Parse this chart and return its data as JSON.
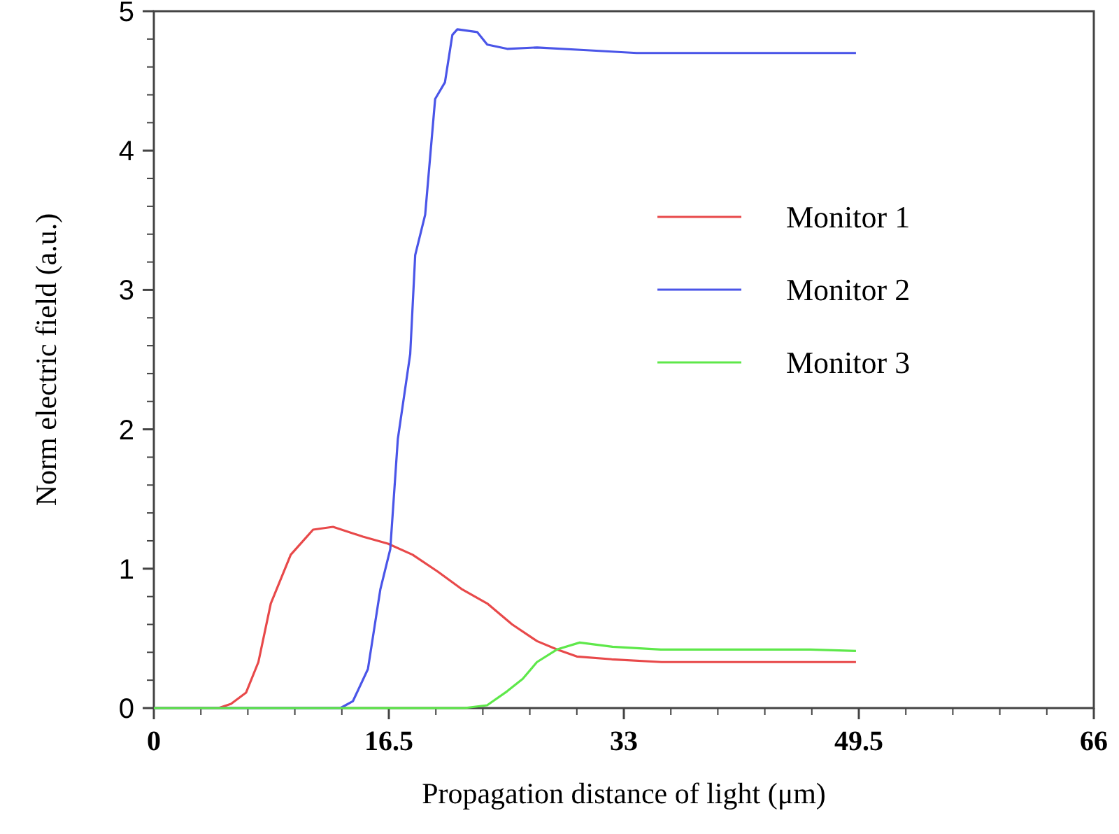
{
  "chart_data": {
    "type": "line",
    "xlabel": "Propagation distance of light (μm)",
    "ylabel": "Norm electric field (a.u.)",
    "xlim": [
      0,
      66
    ],
    "xticks": [
      0,
      16.5,
      33,
      49.5,
      66
    ],
    "ylim": [
      0,
      5
    ],
    "yticks": [
      0,
      1,
      2,
      3,
      4,
      5
    ],
    "grid": false,
    "legend": "right",
    "marker": "none",
    "line_style": "solid",
    "series": [
      {
        "name": "Monitor 1",
        "color": "#e8494a",
        "x": [
          0,
          4.54,
          5.42,
          6.47,
          7.34,
          8.21,
          9.61,
          11.18,
          12.58,
          14.68,
          16.43,
          18.17,
          19.92,
          21.67,
          23.41,
          25.16,
          26.91,
          28.31,
          29.7,
          32.15,
          35.65,
          49.3
        ],
        "values": [
          0,
          0,
          0.03,
          0.11,
          0.33,
          0.75,
          1.1,
          1.28,
          1.3,
          1.23,
          1.18,
          1.1,
          0.98,
          0.85,
          0.75,
          0.6,
          0.48,
          0.42,
          0.37,
          0.35,
          0.33,
          0.33
        ]
      },
      {
        "name": "Monitor 2",
        "color": "#4a55e8",
        "x": [
          0,
          13.1,
          13.98,
          15.03,
          15.9,
          16.6,
          17.13,
          18.0,
          18.35,
          19.05,
          19.75,
          20.44,
          20.96,
          21.31,
          22.71,
          23.41,
          24.81,
          26.91,
          30.4,
          33.9,
          49.3
        ],
        "values": [
          0,
          0,
          0.05,
          0.28,
          0.85,
          1.14,
          1.93,
          2.54,
          3.25,
          3.54,
          4.37,
          4.49,
          4.83,
          4.87,
          4.85,
          4.76,
          4.73,
          4.74,
          4.72,
          4.7,
          4.7
        ]
      },
      {
        "name": "Monitor 3",
        "color": "#5ee84a",
        "x": [
          0,
          21.8,
          23.4,
          24.8,
          25.9,
          26.9,
          28.3,
          29.9,
          32.2,
          35.6,
          46.1,
          49.3
        ],
        "values": [
          0,
          0,
          0.02,
          0.12,
          0.21,
          0.33,
          0.42,
          0.47,
          0.44,
          0.42,
          0.42,
          0.41
        ]
      }
    ]
  }
}
